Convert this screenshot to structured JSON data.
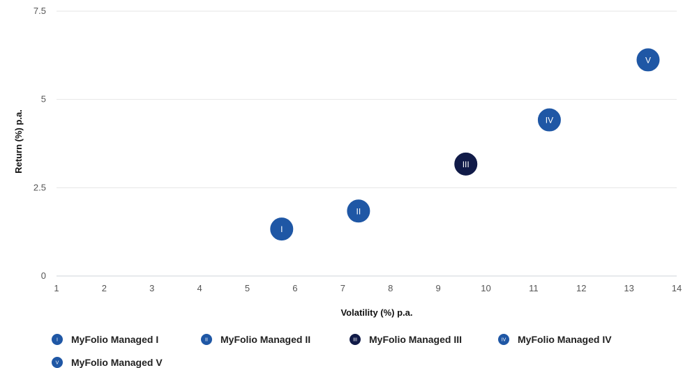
{
  "chart_data": {
    "type": "scatter",
    "xlabel": "Volatility (%) p.a.",
    "ylabel": "Return (%) p.a.",
    "xlim": [
      1,
      14
    ],
    "ylim": [
      0,
      7.5
    ],
    "x_ticks": [
      "1",
      "2",
      "3",
      "4",
      "5",
      "6",
      "7",
      "8",
      "9",
      "10",
      "11",
      "12",
      "13",
      "14"
    ],
    "y_ticks": [
      "0",
      "2.5",
      "5",
      "7.5"
    ],
    "grid": "horizontal",
    "legend_position": "bottom-left",
    "series": [
      {
        "name": "MyFolio Managed I",
        "marker": "I",
        "color": "#1f57a5",
        "x": 5.72,
        "y": 1.33
      },
      {
        "name": "MyFolio Managed II",
        "marker": "II",
        "color": "#1f57a5",
        "x": 7.33,
        "y": 1.84
      },
      {
        "name": "MyFolio Managed III",
        "marker": "III",
        "color": "#111b48",
        "x": 9.58,
        "y": 3.17
      },
      {
        "name": "MyFolio Managed IV",
        "marker": "IV",
        "color": "#1f57a5",
        "x": 11.33,
        "y": 4.42
      },
      {
        "name": "MyFolio Managed V",
        "marker": "V",
        "color": "#1f57a5",
        "x": 13.4,
        "y": 6.12
      }
    ]
  }
}
